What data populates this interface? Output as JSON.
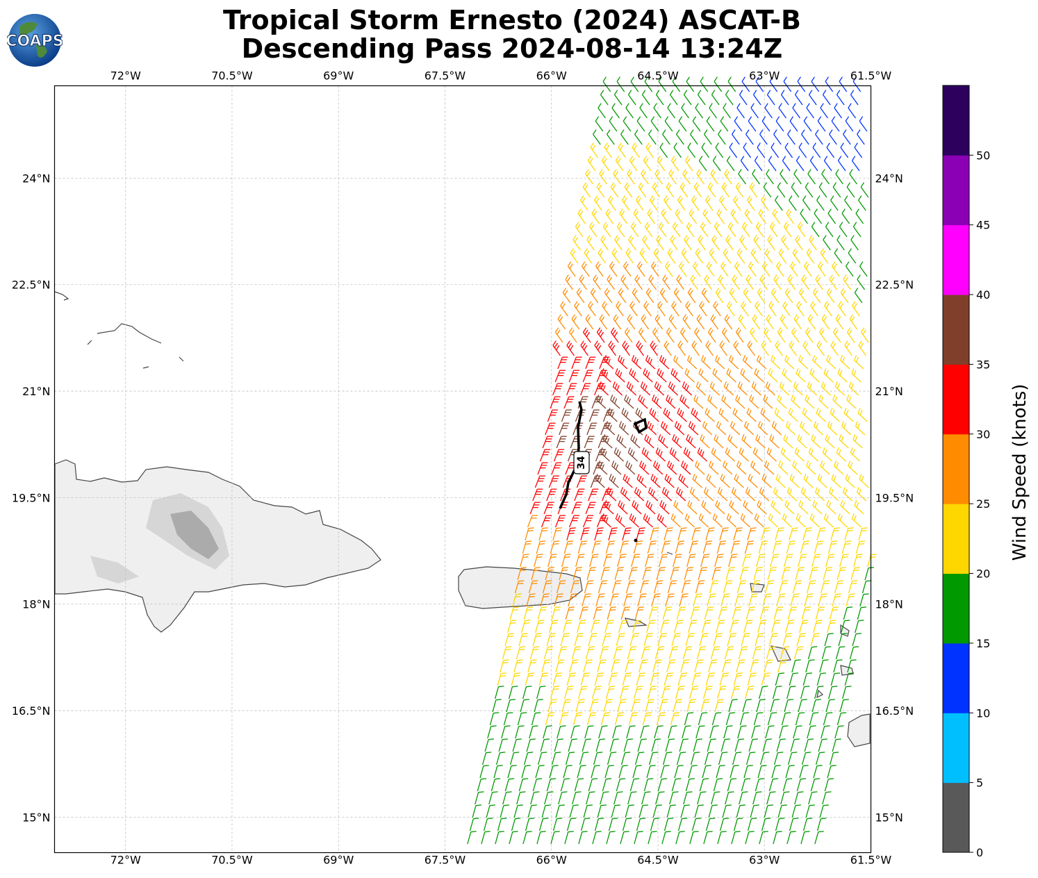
{
  "title": {
    "line1": "Tropical Storm Ernesto (2024) ASCAT-B",
    "line2": "Descending Pass 2024-08-14 13:24Z"
  },
  "logo": {
    "text": "COAPS"
  },
  "map": {
    "lon_range": [
      -73,
      -61.5
    ],
    "lat_range": [
      14.5,
      25.3
    ],
    "lon_ticks": [
      "72°W",
      "70.5°W",
      "69°W",
      "67.5°W",
      "66°W",
      "64.5°W",
      "63°W",
      "61.5°W"
    ],
    "lat_ticks": [
      "24°N",
      "22.5°N",
      "21°N",
      "19.5°N",
      "18°N",
      "16.5°N",
      "15°N"
    ],
    "contour_label": "34"
  },
  "colorbar": {
    "label": "Wind Speed (knots)",
    "ticks": [
      "0",
      "5",
      "10",
      "15",
      "20",
      "25",
      "30",
      "35",
      "40",
      "45",
      "50"
    ],
    "colors": [
      "#595959",
      "#00bfff",
      "#0033ff",
      "#009900",
      "#ffd700",
      "#ff8c00",
      "#ff0000",
      "#7f3f2a",
      "#ff00ff",
      "#8b00b4",
      "#2d005e"
    ]
  }
}
